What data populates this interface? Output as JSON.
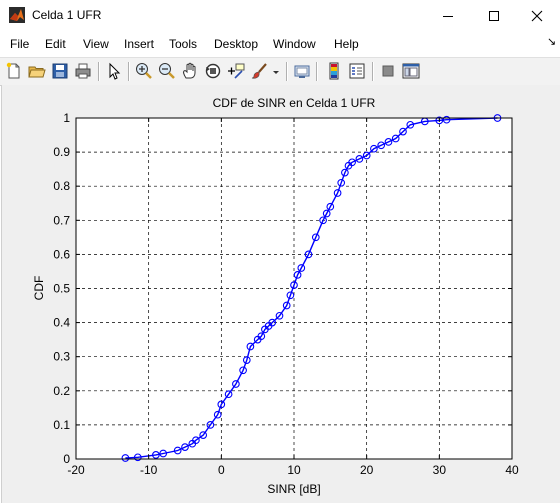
{
  "window": {
    "title": "Celda 1 UFR",
    "icon": "matlab-figure-icon",
    "controls": [
      "minimize-icon",
      "maximize-icon",
      "close-icon"
    ]
  },
  "menu": [
    "File",
    "Edit",
    "View",
    "Insert",
    "Tools",
    "Desktop",
    "Window",
    "Help"
  ],
  "toolbar": {
    "icons": [
      "new-figure-icon",
      "open-file-icon",
      "save-icon",
      "print-icon",
      "edit-plot-icon",
      "zoom-in-icon",
      "zoom-out-icon",
      "pan-icon",
      "rotate-3d-icon",
      "data-cursor-icon",
      "brush-icon",
      "brush-dropdown-icon",
      "link-plot-icon",
      "insert-colorbar-icon",
      "insert-legend-icon",
      "hide-plot-tools-icon",
      "show-plot-tools-icon"
    ]
  },
  "chart_data": {
    "type": "line",
    "title": "CDF de SINR en Celda 1 UFR",
    "xlabel": "SINR [dB]",
    "ylabel": "CDF",
    "xlim": [
      -20,
      40
    ],
    "ylim": [
      0,
      1
    ],
    "xticks": [
      "-20",
      "-10",
      "0",
      "10",
      "20",
      "30",
      "40"
    ],
    "yticks": [
      "0",
      "0.1",
      "0.2",
      "0.3",
      "0.4",
      "0.5",
      "0.6",
      "0.7",
      "0.8",
      "0.9",
      "1"
    ],
    "grid": true,
    "marker": "circle",
    "color": "#0000ff",
    "series": [
      {
        "x": [
          -13.2,
          -11.5,
          -9,
          -8,
          -6,
          -5,
          -4,
          -3.5,
          -2.5,
          -1.5,
          -0.5,
          0,
          1,
          2,
          3,
          3.5,
          4,
          5,
          5.5,
          6,
          6.5,
          7,
          8,
          9,
          9.5,
          10,
          10.5,
          11,
          12,
          13,
          14,
          14.5,
          15,
          16,
          16.5,
          17,
          17.5,
          18,
          19,
          20,
          21,
          22,
          23,
          24,
          25,
          26,
          28,
          30,
          31,
          38
        ],
        "y": [
          0.003,
          0.005,
          0.012,
          0.016,
          0.025,
          0.035,
          0.045,
          0.055,
          0.07,
          0.1,
          0.13,
          0.16,
          0.19,
          0.22,
          0.26,
          0.29,
          0.33,
          0.35,
          0.36,
          0.38,
          0.39,
          0.4,
          0.42,
          0.45,
          0.48,
          0.51,
          0.54,
          0.56,
          0.6,
          0.65,
          0.7,
          0.72,
          0.74,
          0.78,
          0.81,
          0.84,
          0.86,
          0.87,
          0.88,
          0.89,
          0.91,
          0.92,
          0.93,
          0.94,
          0.96,
          0.98,
          0.99,
          0.993,
          0.995,
          1
        ]
      }
    ]
  }
}
